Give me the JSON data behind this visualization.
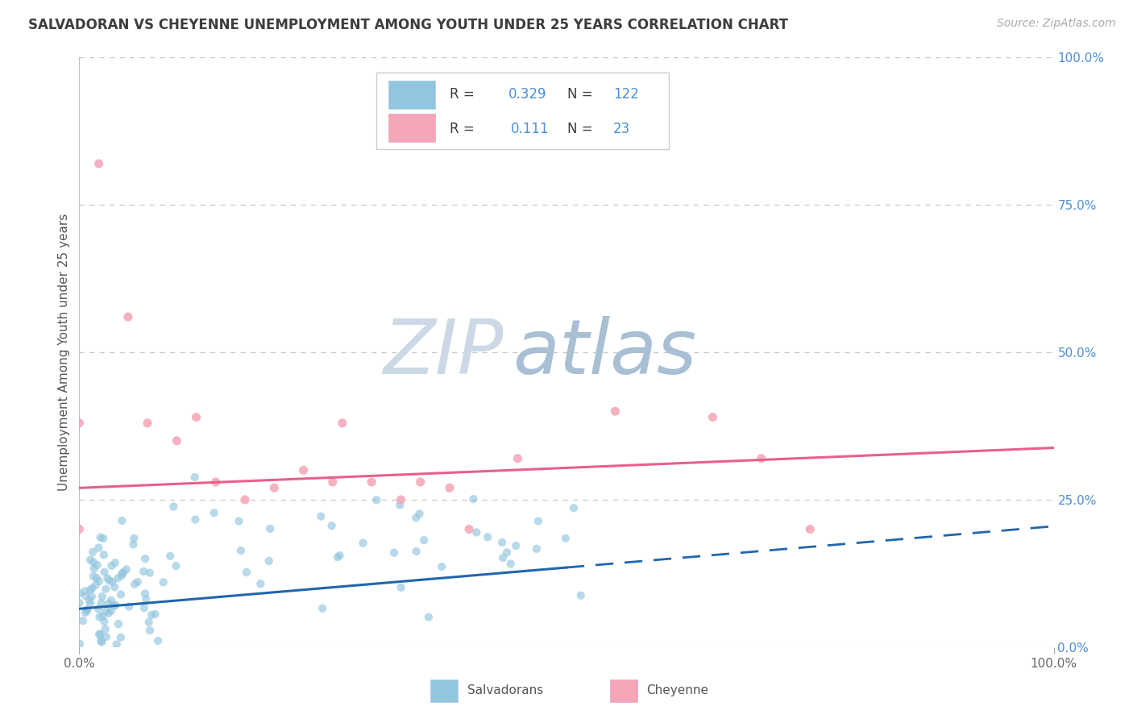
{
  "title": "SALVADORAN VS CHEYENNE UNEMPLOYMENT AMONG YOUTH UNDER 25 YEARS CORRELATION CHART",
  "source": "Source: ZipAtlas.com",
  "ylabel": "Unemployment Among Youth under 25 years",
  "ytick_labels": [
    "0.0%",
    "25.0%",
    "50.0%",
    "75.0%",
    "100.0%"
  ],
  "xtick_labels": [
    "0.0%",
    "100.0%"
  ],
  "blue_color": "#92C5DE",
  "pink_color": "#F4A6B8",
  "trend_blue": "#2166AC",
  "trend_pink": "#E8608A",
  "title_color": "#3d3d3d",
  "label_blue": "#4a90d9",
  "watermark_zip_color": "#ccd8e5",
  "watermark_atlas_color": "#a8bfd4",
  "background_color": "#ffffff",
  "grid_color": "#c8c8c8",
  "R_sal": 0.329,
  "N_sal": 122,
  "R_che": 0.111,
  "N_che": 23
}
